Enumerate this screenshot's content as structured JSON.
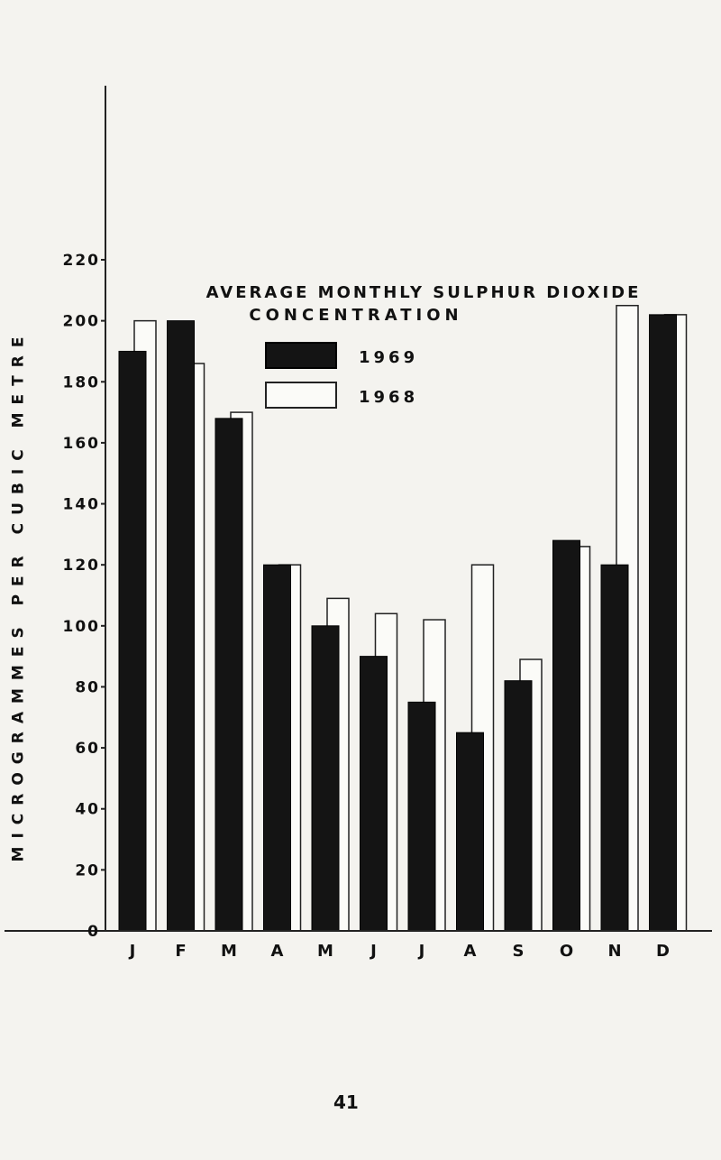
{
  "chart_data": {
    "type": "bar",
    "title": "AVERAGE MONTHLY SULPHUR DIOXIDE CONCENTRATION",
    "ylabel": "MICROGRAMMES PER CUBIC METRE",
    "xlabel": "",
    "categories": [
      "J",
      "F",
      "M",
      "A",
      "M",
      "J",
      "J",
      "A",
      "S",
      "O",
      "N",
      "D"
    ],
    "yticks": [
      "0",
      "20",
      "40",
      "60",
      "80",
      "100",
      "120",
      "140",
      "160",
      "180",
      "200",
      "220"
    ],
    "ylim": [
      0,
      220
    ],
    "grid": false,
    "legend_position": "top-right",
    "series": [
      {
        "name": "1969",
        "values": [
          190,
          200,
          168,
          120,
          100,
          90,
          75,
          65,
          82,
          128,
          120,
          202
        ],
        "color": "#141414"
      },
      {
        "name": "1968",
        "values": [
          200,
          186,
          170,
          120,
          109,
          104,
          102,
          120,
          89,
          126,
          205,
          202
        ],
        "color": "#fbfbf8"
      }
    ]
  },
  "page": {
    "number": "41"
  }
}
